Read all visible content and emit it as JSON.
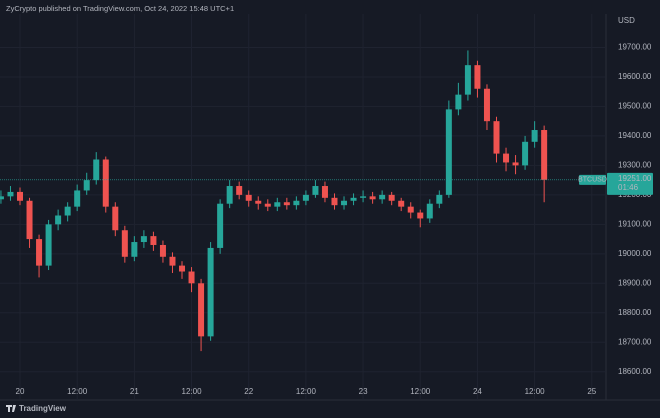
{
  "chart_data": {
    "type": "candlestick",
    "title": "ZyCrypto published on TradingView.com, Oct 24, 2022 15:48 UTC+1",
    "y_axis_label": "USD",
    "brand": "TradingView",
    "symbol": "BTCUSD",
    "last_price": {
      "value": 19251,
      "label": "19251.00"
    },
    "countdown": "01:46",
    "up_color": "#26a69a",
    "down_color": "#ef5350",
    "grid": true,
    "categories": [
      null,
      null,
      "20",
      null,
      null,
      null,
      null,
      null,
      "12:00",
      null,
      null,
      null,
      null,
      null,
      "21",
      null,
      null,
      null,
      null,
      null,
      "12:00",
      null,
      null,
      null,
      null,
      null,
      "22",
      null,
      null,
      null,
      null,
      null,
      "12:00",
      null,
      null,
      null,
      null,
      null,
      "23",
      null,
      null,
      null,
      null,
      null,
      "12:00",
      null,
      null,
      null,
      null,
      null,
      "24",
      null,
      null,
      null,
      null,
      null,
      "12:00",
      null,
      null,
      null,
      null,
      null,
      "25"
    ],
    "open": [
      19185,
      19195,
      19210,
      19180,
      19050,
      18960,
      19100,
      19130,
      19160,
      19215,
      19250,
      19320,
      19160,
      19080,
      18990,
      19040,
      19060,
      19030,
      18990,
      18960,
      18940,
      18900,
      18720,
      19020,
      19170,
      19230,
      19200,
      19180,
      19170,
      19160,
      19175,
      19165,
      19180,
      19200,
      19230,
      19190,
      19165,
      19180,
      19190,
      19195,
      19185,
      19200,
      19180,
      19160,
      19140,
      19120,
      19170,
      19200,
      19490,
      19540,
      19640,
      19560,
      19450,
      19340,
      19310,
      19300,
      19380,
      19420,
      null,
      null,
      null,
      null,
      null
    ],
    "high": [
      19215,
      19230,
      19225,
      19190,
      19065,
      19115,
      19150,
      19175,
      19235,
      19275,
      19345,
      19330,
      19175,
      19095,
      19060,
      19080,
      19075,
      19045,
      19005,
      18975,
      18955,
      18915,
      19040,
      19185,
      19250,
      19245,
      19215,
      19195,
      19185,
      19190,
      19190,
      19195,
      19215,
      19250,
      19245,
      19205,
      19195,
      19205,
      19215,
      19210,
      19215,
      19210,
      19190,
      19175,
      19150,
      19185,
      19215,
      19520,
      19580,
      19690,
      19655,
      19575,
      19465,
      19360,
      19335,
      19400,
      19450,
      19435,
      null,
      null,
      null,
      null,
      null
    ],
    "low": [
      19170,
      19180,
      19165,
      19020,
      18920,
      18945,
      19080,
      19110,
      19145,
      19200,
      19235,
      19140,
      19060,
      18970,
      18975,
      19020,
      19010,
      18970,
      18935,
      18915,
      18870,
      18670,
      18705,
      19000,
      19155,
      19185,
      19160,
      19150,
      19145,
      19145,
      19150,
      19150,
      19165,
      19190,
      19175,
      19150,
      19150,
      19165,
      19175,
      19170,
      19170,
      19165,
      19145,
      19120,
      19090,
      19105,
      19155,
      19190,
      19470,
      19520,
      19530,
      19420,
      19310,
      19280,
      19270,
      19285,
      19360,
      19175,
      null,
      null,
      null,
      null,
      null
    ],
    "close": [
      19195,
      19210,
      19180,
      19050,
      18960,
      19100,
      19130,
      19160,
      19215,
      19250,
      19320,
      19160,
      19080,
      18990,
      19040,
      19060,
      19030,
      18990,
      18960,
      18940,
      18900,
      18720,
      19020,
      19170,
      19230,
      19200,
      19180,
      19170,
      19160,
      19175,
      19165,
      19180,
      19200,
      19230,
      19190,
      19165,
      19180,
      19190,
      19195,
      19185,
      19200,
      19180,
      19160,
      19140,
      19120,
      19170,
      19200,
      19490,
      19540,
      19640,
      19560,
      19450,
      19340,
      19310,
      19300,
      19380,
      19420,
      19251,
      null,
      null,
      null,
      null,
      null
    ],
    "ylim": [
      18555,
      19800
    ],
    "yticks": [
      {
        "value": 18600,
        "label": "18600.00"
      },
      {
        "value": 18700,
        "label": "18700.00"
      },
      {
        "value": 18800,
        "label": "18800.00"
      },
      {
        "value": 18900,
        "label": "18900.00"
      },
      {
        "value": 19000,
        "label": "19000.00"
      },
      {
        "value": 19100,
        "label": "19100.00"
      },
      {
        "value": 19200,
        "label": "19200.00"
      },
      {
        "value": 19300,
        "label": "19300.00"
      },
      {
        "value": 19400,
        "label": "19400.00"
      },
      {
        "value": 19500,
        "label": "19500.00"
      },
      {
        "value": 19600,
        "label": "19600.00"
      },
      {
        "value": 19700,
        "label": "19700.00"
      }
    ]
  }
}
